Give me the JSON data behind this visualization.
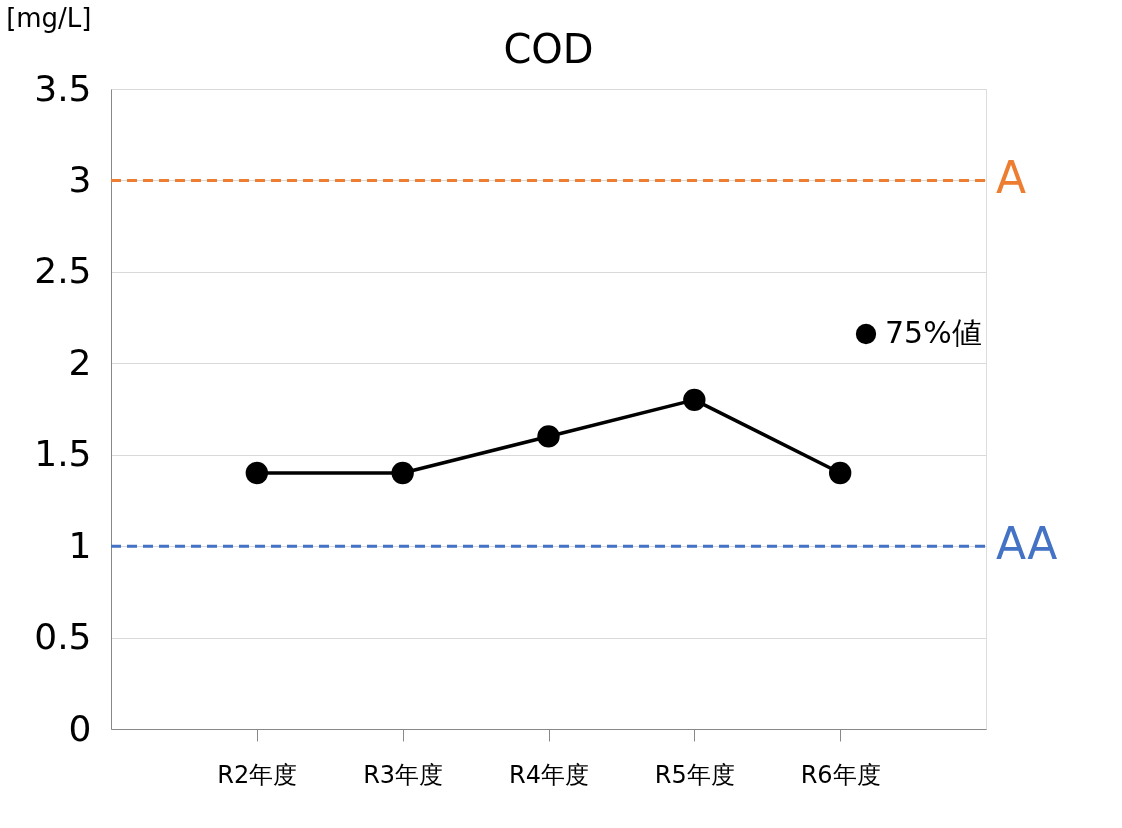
{
  "chart_data": {
    "type": "line",
    "title": "COD",
    "ylabel": "[mg/L]",
    "categories": [
      "R2年度",
      "R3年度",
      "R4年度",
      "R5年度",
      "R6年度"
    ],
    "series": [
      {
        "name": "75%値",
        "color": "#000000",
        "values": [
          1.4,
          1.4,
          1.6,
          1.8,
          1.4
        ]
      }
    ],
    "ylim": [
      0,
      3.5
    ],
    "yticks": [
      0,
      0.5,
      1,
      1.5,
      2,
      2.5,
      3,
      3.5
    ],
    "ref_lines": [
      {
        "axis": "y",
        "value": 3,
        "label": "A",
        "color": "#ed7d31",
        "line_style": "dashed"
      },
      {
        "axis": "y",
        "value": 1,
        "label": "AA",
        "color": "#4472c4",
        "line_style": "dashed"
      }
    ],
    "grid": "y",
    "legend": "right",
    "marker": "circle",
    "line_style": "solid"
  }
}
